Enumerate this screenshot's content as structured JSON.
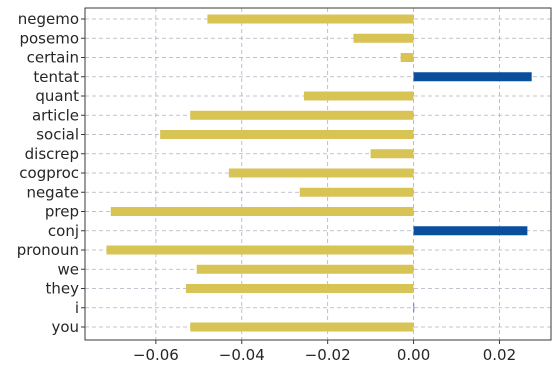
{
  "chart_data": {
    "type": "bar",
    "orientation": "horizontal",
    "categories": [
      "you",
      "i",
      "they",
      "we",
      "pronoun",
      "conj",
      "prep",
      "negate",
      "cogproc",
      "discrep",
      "social",
      "article",
      "quant",
      "tentat",
      "certain",
      "posemo",
      "negemo"
    ],
    "values": [
      -0.052,
      0.0,
      -0.053,
      -0.0505,
      -0.0715,
      0.0265,
      -0.0705,
      -0.0265,
      -0.043,
      -0.01,
      -0.059,
      -0.052,
      -0.0255,
      0.0275,
      -0.003,
      -0.014,
      -0.048
    ],
    "xlim": [
      -0.0765,
      0.032
    ],
    "xticks": [
      -0.06,
      -0.04,
      -0.02,
      0.0,
      0.02
    ],
    "xtick_labels": [
      "−0.06",
      "−0.04",
      "−0.02",
      "0.00",
      "0.02"
    ],
    "title": "",
    "xlabel": "",
    "ylabel": "",
    "grid": true,
    "colors": {
      "negative": "#d8c355",
      "positive": "#0a4f9b"
    }
  }
}
